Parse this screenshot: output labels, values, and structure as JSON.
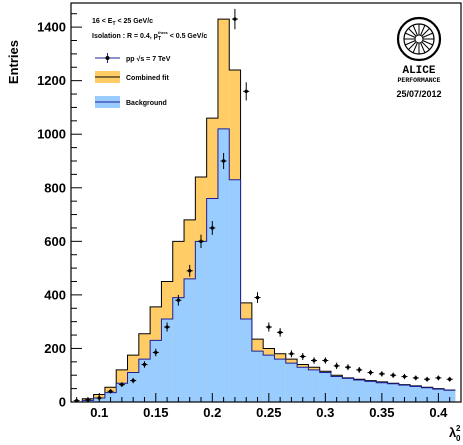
{
  "chart_data": {
    "type": "histogram",
    "ylabel": "Entries",
    "xlabel": "λ₀²",
    "xlim": [
      0.075,
      0.42
    ],
    "ylim": [
      0,
      1490
    ],
    "x_ticks": [
      "0.1",
      "0.15",
      "0.2",
      "0.25",
      "0.3",
      "0.35",
      "0.4"
    ],
    "x_tick_values": [
      0.1,
      0.15,
      0.2,
      0.25,
      0.3,
      0.35,
      0.4
    ],
    "y_ticks": [
      "0",
      "200",
      "400",
      "600",
      "800",
      "1000",
      "1200",
      "1400"
    ],
    "y_tick_values": [
      0,
      200,
      400,
      600,
      800,
      1000,
      1200,
      1400
    ],
    "bin_width": 0.01,
    "bin_edges_start": 0.075,
    "series": [
      {
        "name": "Combined fit",
        "color": "#ffcc66",
        "edge": "#000000",
        "values": [
          0,
          12,
          28,
          55,
          120,
          175,
          255,
          355,
          450,
          600,
          680,
          840,
          1060,
          1430,
          1240,
          370,
          235,
          200,
          180,
          160,
          140,
          130,
          115,
          100,
          90,
          85,
          80,
          75,
          70,
          65,
          60,
          55,
          50,
          45
        ]
      },
      {
        "name": "Background",
        "color": "#99ccff",
        "edge": "#1f1f99",
        "values": [
          0,
          6,
          15,
          35,
          70,
          110,
          160,
          230,
          310,
          390,
          460,
          600,
          760,
          1020,
          830,
          310,
          190,
          175,
          160,
          145,
          130,
          120,
          110,
          95,
          88,
          82,
          77,
          72,
          68,
          63,
          58,
          53,
          48,
          44
        ]
      }
    ],
    "data_points": {
      "name": "pp √s = 7 TeV",
      "x": [
        0.08,
        0.09,
        0.1,
        0.11,
        0.12,
        0.13,
        0.14,
        0.15,
        0.16,
        0.17,
        0.18,
        0.19,
        0.2,
        0.21,
        0.22,
        0.23,
        0.24,
        0.25,
        0.26,
        0.27,
        0.28,
        0.29,
        0.3,
        0.31,
        0.32,
        0.33,
        0.34,
        0.35,
        0.36,
        0.37,
        0.38,
        0.39,
        0.4,
        0.41
      ],
      "y": [
        5,
        8,
        15,
        40,
        65,
        80,
        140,
        185,
        280,
        380,
        490,
        600,
        650,
        900,
        1430,
        1160,
        390,
        280,
        260,
        180,
        170,
        155,
        155,
        135,
        130,
        120,
        110,
        105,
        100,
        95,
        90,
        85,
        90,
        85
      ],
      "yerr": [
        4,
        5,
        6,
        8,
        9,
        10,
        12,
        14,
        17,
        20,
        22,
        25,
        26,
        30,
        38,
        34,
        20,
        17,
        16,
        13,
        13,
        12,
        12,
        12,
        11,
        11,
        10,
        10,
        10,
        10,
        9,
        9,
        9,
        9
      ]
    },
    "legend": {
      "placement": "top-left",
      "line1": "16 < E",
      "line1_sub": "T",
      "line1_rest": " < 25 GeV/c",
      "line2": "Isolation : R = 0.4, p",
      "line2_sub": "T",
      "line2_sup": "thres",
      "line2_rest": " < 0.5 GeV/c",
      "entries": [
        "pp √s = 7 TeV",
        "Combined fit",
        "Background"
      ]
    },
    "logo": {
      "name": "ALICE",
      "subtitle": "PERFORMANCE",
      "date": "25/07/2012"
    },
    "grid": false
  }
}
